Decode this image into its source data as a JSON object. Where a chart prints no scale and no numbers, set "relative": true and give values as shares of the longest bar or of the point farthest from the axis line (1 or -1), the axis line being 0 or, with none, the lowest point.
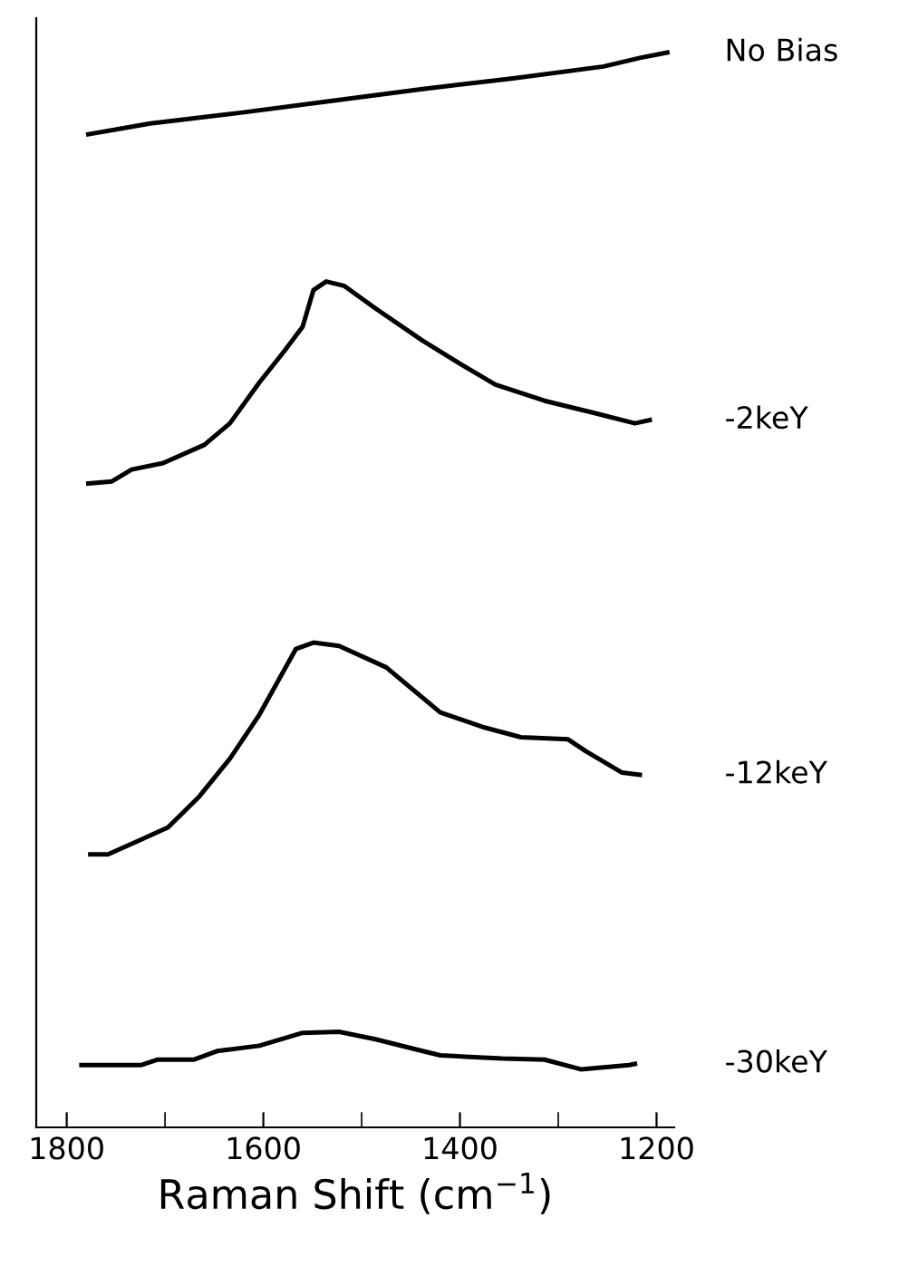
{
  "chart_data": {
    "type": "line",
    "relative": true,
    "xlabel": "Raman Shift (cm$^{−1}$)",
    "tick_labels": "x",
    "grid": false,
    "legend": false,
    "marker": "none",
    "line_style": "solid",
    "xlim": [
      1831,
      1182
    ],
    "xticks": [
      1800,
      {
        "value": 1700,
        "label": null
      },
      1600,
      {
        "value": 1500,
        "label": null
      },
      1400,
      {
        "value": 1300,
        "label": null
      },
      1200
    ],
    "series": [
      {
        "name": "No Bias",
        "color": "#000000",
        "x": [
          1778,
          1715,
          1623,
          1530,
          1438,
          1346,
          1254,
          1217,
          1189
        ],
        "values": [
          0.924,
          0.934,
          0.944,
          0.955,
          0.966,
          0.976,
          0.987,
          0.995,
          1.0
        ]
      },
      {
        "name": "-2keY",
        "color": "#000000",
        "x": [
          1778,
          1754,
          1734,
          1702,
          1660,
          1634,
          1604,
          1578,
          1560,
          1549,
          1536,
          1518,
          1486,
          1438,
          1401,
          1364,
          1314,
          1265,
          1222,
          1207
        ],
        "values": [
          0.599,
          0.601,
          0.612,
          0.618,
          0.635,
          0.655,
          0.693,
          0.723,
          0.745,
          0.779,
          0.787,
          0.783,
          0.762,
          0.732,
          0.711,
          0.691,
          0.676,
          0.665,
          0.655,
          0.658
        ]
      },
      {
        "name": "-12keY",
        "color": "#000000",
        "x": [
          1776,
          1758,
          1726,
          1697,
          1665,
          1634,
          1604,
          1567,
          1549,
          1523,
          1475,
          1420,
          1375,
          1338,
          1290,
          1272,
          1235,
          1217
        ],
        "values": [
          0.254,
          0.254,
          0.267,
          0.279,
          0.308,
          0.343,
          0.384,
          0.445,
          0.451,
          0.448,
          0.428,
          0.386,
          0.372,
          0.363,
          0.361,
          0.35,
          0.33,
          0.328
        ]
      },
      {
        "name": "-30keY",
        "color": "#000000",
        "x": [
          1785,
          1724,
          1708,
          1671,
          1647,
          1604,
          1560,
          1523,
          1486,
          1438,
          1420,
          1357,
          1314,
          1277,
          1228,
          1222
        ],
        "values": [
          0.058,
          0.058,
          0.063,
          0.063,
          0.071,
          0.076,
          0.088,
          0.089,
          0.082,
          0.071,
          0.067,
          0.064,
          0.063,
          0.054,
          0.058,
          0.059
        ]
      }
    ]
  }
}
